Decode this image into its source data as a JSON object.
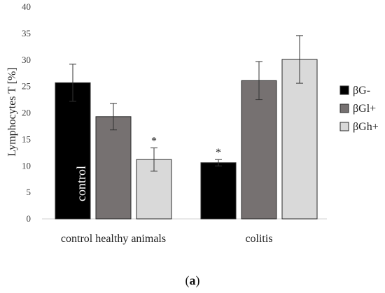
{
  "chart_data": {
    "type": "bar",
    "ylabel": "Lymphocytes T [%]",
    "ylim": [
      0,
      40
    ],
    "yticks": [
      0,
      5,
      10,
      15,
      20,
      25,
      30,
      35,
      40
    ],
    "grid": false,
    "legend_position": "right",
    "categories": [
      "control healthy animals",
      "colitis"
    ],
    "series": [
      {
        "name": "βG-",
        "color": "#000000",
        "values": [
          25.7,
          10.6
        ],
        "errors": [
          3.5,
          0.6
        ],
        "significance": [
          "",
          "*"
        ]
      },
      {
        "name": "βGl+",
        "color": "#767171",
        "values": [
          19.3,
          26.1
        ],
        "errors": [
          2.5,
          3.6
        ],
        "significance": [
          "",
          ""
        ]
      },
      {
        "name": "βGh+",
        "color": "#d9d9d9",
        "values": [
          11.2,
          30.1
        ],
        "errors": [
          2.2,
          4.5
        ],
        "significance": [
          "*",
          ""
        ]
      }
    ],
    "annotations": {
      "bar_label": "control"
    }
  },
  "caption": {
    "open": "(",
    "label": "a",
    "close": ")"
  }
}
